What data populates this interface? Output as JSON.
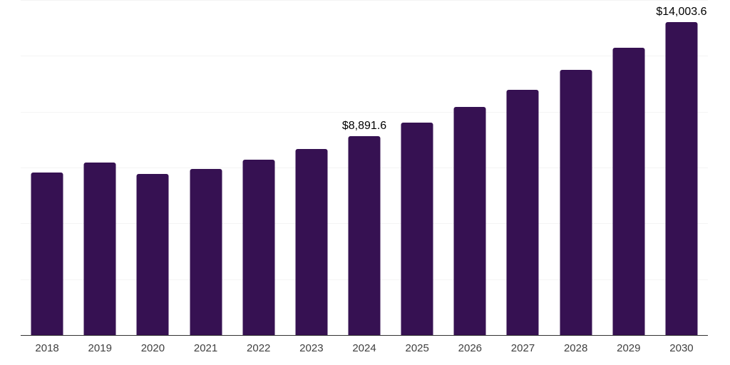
{
  "chart": {
    "background_color": "#ffffff",
    "bar_color": "#361152",
    "axis_color": "#333333",
    "gridline_color": "#f4f4f4",
    "tick_label_color": "#404040",
    "value_label_color": "#000000"
  },
  "chart_data": {
    "type": "bar",
    "title": "",
    "xlabel": "",
    "ylabel": "",
    "categories": [
      "2018",
      "2019",
      "2020",
      "2021",
      "2022",
      "2023",
      "2024",
      "2025",
      "2026",
      "2027",
      "2028",
      "2029",
      "2030"
    ],
    "values": [
      7270,
      7725,
      7210,
      7430,
      7865,
      8345,
      8891.6,
      9525,
      10225,
      10990,
      11880,
      12870,
      14003.6
    ],
    "value_labels": [
      {
        "category": "2024",
        "text": "$8,891.6"
      },
      {
        "category": "2030",
        "text": "$14,003.6"
      }
    ],
    "ylim": [
      0,
      15000
    ],
    "gridline_interval": 2500,
    "grid": true,
    "legend": false,
    "y_axis_ticks_shown": false
  }
}
